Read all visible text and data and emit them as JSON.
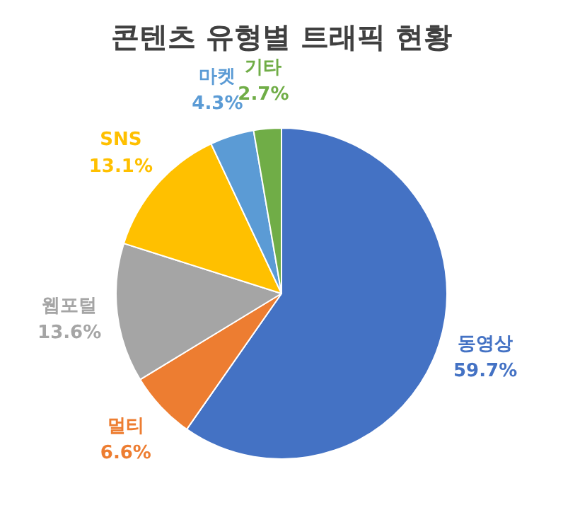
{
  "chart_data": {
    "type": "pie",
    "title": "콘텐츠 유형별 트래픽 현황",
    "categories": [
      "동영상",
      "멀티",
      "웹포털",
      "SNS",
      "마켓",
      "기타"
    ],
    "values": [
      59.7,
      6.6,
      13.6,
      13.1,
      4.3,
      2.7
    ],
    "colors": [
      "#4472c4",
      "#ed7d31",
      "#a5a5a5",
      "#ffc000",
      "#5b9bd5",
      "#70ad47"
    ],
    "value_labels": [
      "59.7%",
      "6.6%",
      "13.6%",
      "13.1%",
      "4.3%",
      "2.7%"
    ],
    "legend": false
  }
}
